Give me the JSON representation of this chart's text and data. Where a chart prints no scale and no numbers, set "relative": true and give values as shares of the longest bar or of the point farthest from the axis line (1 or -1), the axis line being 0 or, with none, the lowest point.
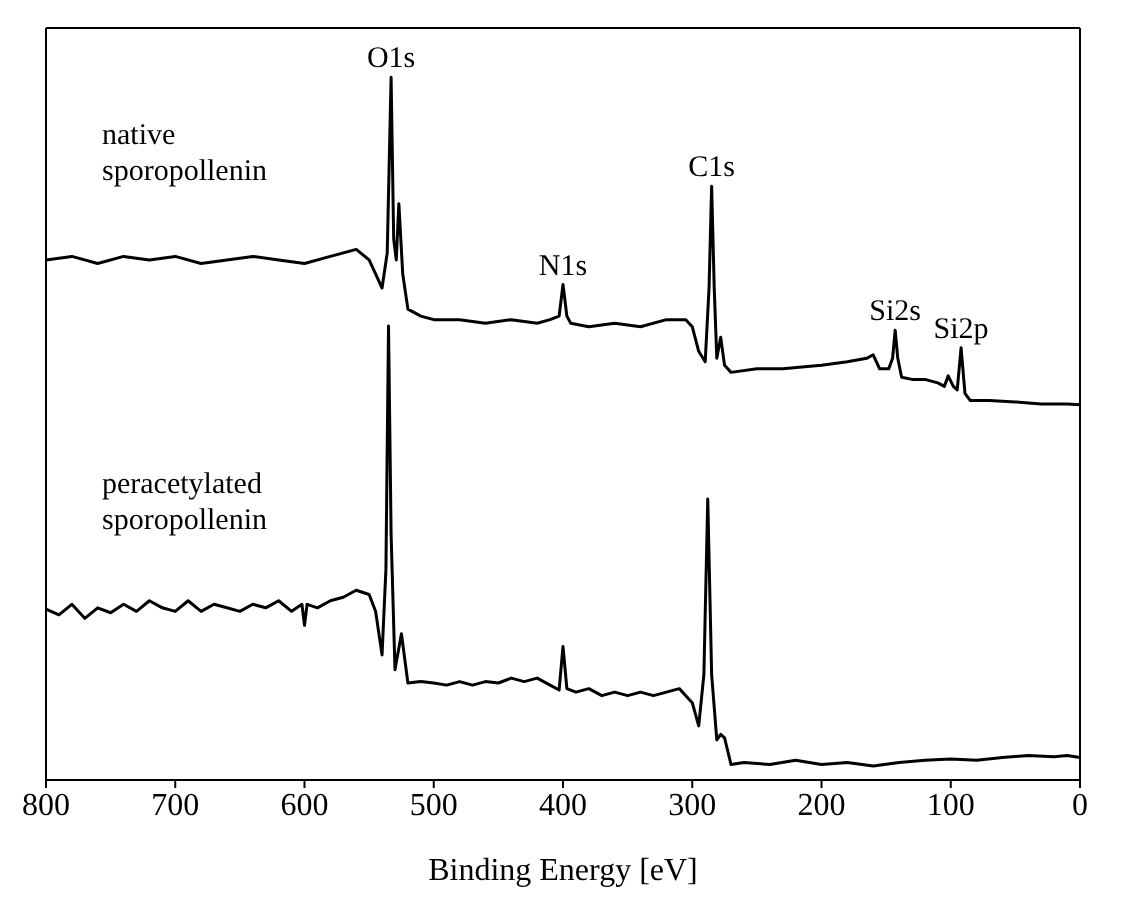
{
  "chart_data": {
    "type": "line",
    "relative": true,
    "xlabel": "Binding Energy [eV]",
    "xlim": [
      800,
      0
    ],
    "xticks": [
      800,
      700,
      600,
      500,
      400,
      300,
      200,
      100,
      0
    ],
    "marker": "none",
    "tick_labels": "x",
    "series": [
      {
        "name": "native sporopollenin",
        "color": "#000000",
        "x": [
          800,
          780,
          760,
          740,
          720,
          700,
          680,
          660,
          640,
          620,
          600,
          580,
          560,
          550,
          545,
          540,
          536,
          533,
          531,
          529,
          527,
          524,
          520,
          510,
          500,
          480,
          460,
          440,
          420,
          410,
          403,
          400,
          397,
          394,
          380,
          360,
          340,
          320,
          305,
          300,
          295,
          290,
          287,
          285,
          283,
          281,
          278,
          275,
          270,
          250,
          230,
          200,
          180,
          165,
          160,
          155,
          148,
          145,
          143,
          141,
          138,
          130,
          120,
          110,
          105,
          102,
          98,
          95,
          92,
          89,
          85,
          70,
          50,
          30,
          10,
          0
        ],
        "values": [
          0.74,
          0.745,
          0.735,
          0.745,
          0.74,
          0.745,
          0.735,
          0.74,
          0.745,
          0.74,
          0.735,
          0.745,
          0.755,
          0.74,
          0.72,
          0.7,
          0.75,
          1.0,
          0.77,
          0.74,
          0.82,
          0.72,
          0.67,
          0.66,
          0.655,
          0.655,
          0.65,
          0.655,
          0.65,
          0.655,
          0.66,
          0.705,
          0.66,
          0.65,
          0.645,
          0.65,
          0.645,
          0.655,
          0.655,
          0.645,
          0.61,
          0.595,
          0.7,
          0.845,
          0.7,
          0.6,
          0.63,
          0.59,
          0.58,
          0.585,
          0.585,
          0.59,
          0.595,
          0.6,
          0.605,
          0.585,
          0.585,
          0.6,
          0.64,
          0.6,
          0.573,
          0.57,
          0.57,
          0.565,
          0.56,
          0.575,
          0.56,
          0.555,
          0.615,
          0.55,
          0.54,
          0.54,
          0.538,
          0.535,
          0.535,
          0.534
        ]
      },
      {
        "name": "peracetylated sporopollenin",
        "color": "#000000",
        "x": [
          800,
          790,
          780,
          770,
          760,
          750,
          740,
          730,
          720,
          710,
          700,
          690,
          680,
          670,
          660,
          650,
          640,
          630,
          620,
          610,
          602,
          600,
          598,
          590,
          580,
          570,
          560,
          550,
          545,
          540,
          537,
          535,
          533,
          530,
          525,
          520,
          510,
          500,
          490,
          480,
          470,
          460,
          450,
          440,
          430,
          420,
          410,
          403,
          400,
          397,
          390,
          380,
          370,
          360,
          350,
          340,
          330,
          320,
          310,
          305,
          300,
          295,
          291,
          288,
          285,
          281,
          278,
          275,
          270,
          260,
          240,
          220,
          200,
          180,
          160,
          140,
          120,
          100,
          80,
          60,
          40,
          20,
          10,
          0
        ],
        "values": [
          0.243,
          0.235,
          0.25,
          0.23,
          0.245,
          0.238,
          0.25,
          0.24,
          0.255,
          0.245,
          0.24,
          0.255,
          0.24,
          0.25,
          0.245,
          0.24,
          0.25,
          0.245,
          0.255,
          0.24,
          0.25,
          0.22,
          0.25,
          0.245,
          0.255,
          0.26,
          0.27,
          0.264,
          0.24,
          0.178,
          0.3,
          0.646,
          0.35,
          0.157,
          0.208,
          0.138,
          0.14,
          0.138,
          0.135,
          0.14,
          0.135,
          0.14,
          0.138,
          0.145,
          0.14,
          0.145,
          0.135,
          0.128,
          0.19,
          0.13,
          0.125,
          0.13,
          0.12,
          0.125,
          0.12,
          0.125,
          0.12,
          0.125,
          0.13,
          0.12,
          0.11,
          0.077,
          0.15,
          0.4,
          0.15,
          0.057,
          0.065,
          0.06,
          0.022,
          0.025,
          0.022,
          0.028,
          0.022,
          0.025,
          0.02,
          0.025,
          0.028,
          0.03,
          0.028,
          0.032,
          0.035,
          0.033,
          0.035,
          0.032
        ]
      }
    ],
    "annotations": [
      {
        "text": "O1s",
        "x": 533,
        "y": 1.0
      },
      {
        "text": "N1s",
        "x": 400,
        "y": 0.705
      },
      {
        "text": "C1s",
        "x": 285,
        "y": 0.845
      },
      {
        "text": "Si2s",
        "x": 143,
        "y": 0.64
      },
      {
        "text": "Si2p",
        "x": 92,
        "y": 0.615
      }
    ]
  }
}
